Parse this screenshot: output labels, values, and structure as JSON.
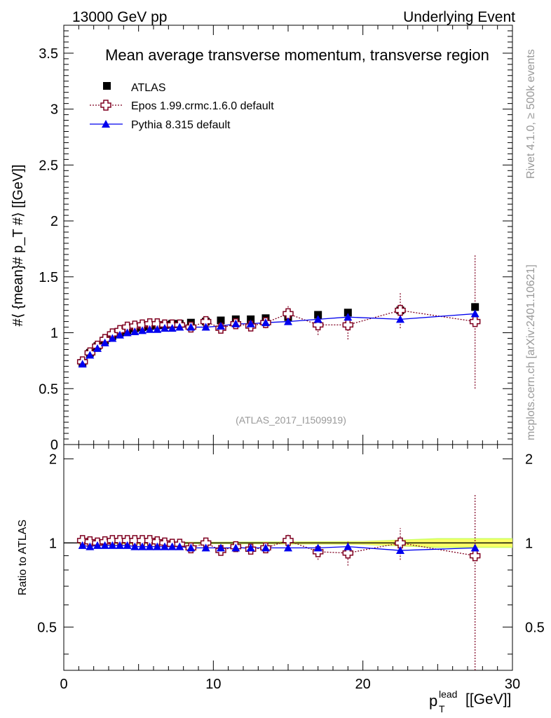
{
  "header": {
    "energy_label": "13000 GeV pp",
    "process_label": "Underlying Event",
    "side_label_rivet": "Rivet 4.1.0, ≥ 500k events",
    "side_label_mcplots": "mcplots.cern.ch [arXiv:2401.10621]"
  },
  "colors": {
    "atlas": "#000000",
    "epos": "#7f0020",
    "pythia": "#0000ee",
    "band_green": "#ccff66",
    "band_yellow": "#ffff66"
  },
  "chart_data": [
    {
      "type": "scatter",
      "title": "Mean average transverse momentum, transverse region",
      "analysis_label": "(ATLAS_2017_I1509919)",
      "xlabel": "p_T^lead [[GeV]]",
      "ylabel": "#⟨ {mean}# p_T #⟩ [[GeV]]",
      "xlim": [
        0,
        30
      ],
      "ylim": [
        0,
        3.75
      ],
      "yticks_major": [
        0,
        0.5,
        1,
        1.5,
        2,
        2.5,
        3,
        3.5
      ],
      "ytick_labels": [
        "0",
        "0.5",
        "1",
        "1.5",
        "2",
        "2.5",
        "3",
        "3.5"
      ],
      "legend": [
        "ATLAS",
        "Epos 1.99.crmc.1.6.0 default",
        "Pythia 8.315 default"
      ],
      "x": [
        1.25,
        1.75,
        2.25,
        2.75,
        3.25,
        3.75,
        4.25,
        4.75,
        5.25,
        5.75,
        6.25,
        6.75,
        7.25,
        7.75,
        8.5,
        9.5,
        10.5,
        11.5,
        12.5,
        13.5,
        15.0,
        17.0,
        19.0,
        22.5,
        27.5
      ],
      "series": [
        {
          "name": "ATLAS",
          "values": [
            0.73,
            0.82,
            0.88,
            0.93,
            0.97,
            1.0,
            1.02,
            1.04,
            1.05,
            1.06,
            1.07,
            1.07,
            1.08,
            1.08,
            1.09,
            1.1,
            1.11,
            1.12,
            1.12,
            1.13,
            1.14,
            1.16,
            1.18,
            1.2,
            1.23
          ]
        },
        {
          "name": "Epos 1.99.crmc.1.6.0 default",
          "values": [
            0.74,
            0.82,
            0.88,
            0.94,
            0.99,
            1.02,
            1.05,
            1.06,
            1.07,
            1.08,
            1.08,
            1.07,
            1.07,
            1.07,
            1.05,
            1.1,
            1.04,
            1.08,
            1.06,
            1.09,
            1.17,
            1.07,
            1.07,
            1.2,
            1.1
          ],
          "errors": [
            0,
            0,
            0,
            0,
            0,
            0,
            0,
            0,
            0,
            0,
            0,
            0,
            0,
            0,
            0,
            0,
            0.03,
            0.04,
            0.04,
            0.05,
            0.07,
            0.09,
            0.13,
            0.16,
            0.6
          ]
        },
        {
          "name": "Pythia 8.315 default",
          "values": [
            0.72,
            0.8,
            0.86,
            0.91,
            0.95,
            0.98,
            1.0,
            1.01,
            1.02,
            1.03,
            1.03,
            1.04,
            1.04,
            1.05,
            1.05,
            1.05,
            1.06,
            1.08,
            1.08,
            1.09,
            1.1,
            1.12,
            1.14,
            1.12,
            1.17
          ],
          "errors": [
            0,
            0,
            0,
            0,
            0,
            0,
            0,
            0,
            0,
            0,
            0,
            0,
            0,
            0,
            0,
            0,
            0,
            0,
            0,
            0,
            0.01,
            0.02,
            0.02,
            0.02,
            0.03
          ]
        }
      ]
    },
    {
      "type": "scatter",
      "title": "",
      "ylabel": "Ratio to ATLAS",
      "xlim": [
        0,
        30
      ],
      "ylim": [
        0.35,
        2.25
      ],
      "yticks_major": [
        0.5,
        1,
        2
      ],
      "ytick_labels": [
        "0.5",
        "1",
        "2"
      ],
      "xticks_major": [
        0,
        10,
        20,
        30
      ],
      "xtick_labels": [
        "0",
        "10",
        "20",
        "30"
      ],
      "x": [
        1.25,
        1.75,
        2.25,
        2.75,
        3.25,
        3.75,
        4.25,
        4.75,
        5.25,
        5.75,
        6.25,
        6.75,
        7.25,
        7.75,
        8.5,
        9.5,
        10.5,
        11.5,
        12.5,
        13.5,
        15.0,
        17.0,
        19.0,
        22.5,
        27.5
      ],
      "series": [
        {
          "name": "Epos 1.99.crmc.1.6.0 default",
          "values": [
            1.02,
            1.01,
            1.0,
            1.01,
            1.02,
            1.02,
            1.02,
            1.02,
            1.02,
            1.02,
            1.01,
            1.0,
            0.99,
            0.99,
            0.96,
            1.0,
            0.94,
            0.97,
            0.95,
            0.96,
            1.02,
            0.93,
            0.92,
            1.0,
            0.9
          ],
          "errors": [
            0,
            0,
            0,
            0,
            0,
            0,
            0,
            0,
            0,
            0,
            0,
            0,
            0,
            0,
            0,
            0,
            0.03,
            0.04,
            0.04,
            0.04,
            0.05,
            0.06,
            0.09,
            0.13,
            0.6
          ]
        },
        {
          "name": "Pythia 8.315 default",
          "values": [
            0.98,
            0.97,
            0.98,
            0.98,
            0.98,
            0.98,
            0.98,
            0.97,
            0.97,
            0.97,
            0.97,
            0.97,
            0.97,
            0.97,
            0.96,
            0.96,
            0.96,
            0.96,
            0.96,
            0.96,
            0.96,
            0.96,
            0.97,
            0.94,
            0.96
          ]
        }
      ],
      "uncertainty_band": {
        "x": [
          1.0,
          2.0,
          4.0,
          6.0,
          8.0,
          10.0,
          12.0,
          14.0,
          16.0,
          18.0,
          20.0,
          25.0,
          30.0
        ],
        "stat_half_width": [
          0.006,
          0.006,
          0.006,
          0.006,
          0.006,
          0.006,
          0.007,
          0.008,
          0.009,
          0.01,
          0.012,
          0.03,
          0.03
        ],
        "total_half_width": [
          0.01,
          0.01,
          0.01,
          0.01,
          0.01,
          0.01,
          0.011,
          0.012,
          0.013,
          0.014,
          0.016,
          0.04,
          0.04
        ]
      }
    }
  ]
}
